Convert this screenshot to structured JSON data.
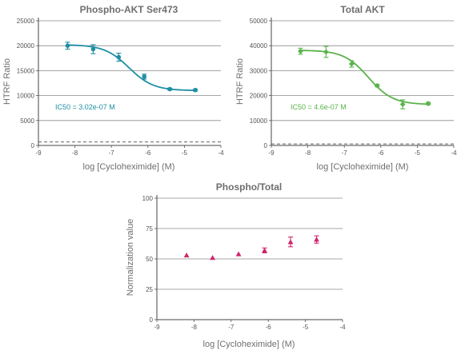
{
  "chart_data": [
    {
      "type": "scatter",
      "title": "Phospho-AKT Ser473",
      "xlabel": "log [Cycloheximide] (M)",
      "ylabel": "HTRF Ratio",
      "xlim": [
        -9,
        -4
      ],
      "ylim": [
        0,
        25000
      ],
      "x_ticks": [
        "-9",
        "-8",
        "-7",
        "-6",
        "-5",
        "-4"
      ],
      "y_ticks": [
        "0",
        "5000",
        "10000",
        "15000",
        "20000",
        "25000"
      ],
      "grid": true,
      "color": "#1f8fa4",
      "marker": "circle",
      "baseline": 700,
      "annotation": "IC50 = 3.02e-07 M",
      "series": [
        {
          "x": [
            -8.2,
            -7.5,
            -6.8,
            -6.1,
            -5.4,
            -4.7
          ],
          "y": [
            20000,
            19300,
            17700,
            13800,
            11300,
            11100
          ],
          "err": [
            700,
            900,
            800,
            500,
            200,
            200
          ]
        }
      ],
      "fit": {
        "top": 20200,
        "bottom": 11000,
        "log_ic50": -6.52,
        "hill": 1.3
      }
    },
    {
      "type": "scatter",
      "title": "Total AKT",
      "xlabel": "log [Cycloheximide] (M)",
      "ylabel": "HTRF Ratio",
      "xlim": [
        -9,
        -4
      ],
      "ylim": [
        0,
        50000
      ],
      "x_ticks": [
        "-9",
        "-8",
        "-7",
        "-6",
        "-5",
        "-4"
      ],
      "y_ticks": [
        "0",
        "10000",
        "20000",
        "30000",
        "40000",
        "50000"
      ],
      "grid": true,
      "color": "#5ab34a",
      "marker": "diamond",
      "baseline": 600,
      "annotation": "IC50 = 4.6e-07 M",
      "series": [
        {
          "x": [
            -8.2,
            -7.5,
            -6.8,
            -6.1,
            -5.4,
            -4.7
          ],
          "y": [
            37800,
            37500,
            32700,
            24000,
            16500,
            16800
          ],
          "err": [
            1200,
            2200,
            1300,
            500,
            1800,
            500
          ]
        }
      ],
      "fit": {
        "top": 38200,
        "bottom": 16400,
        "log_ic50": -6.34,
        "hill": 1.3
      }
    },
    {
      "type": "scatter",
      "title": "Phospho/Total",
      "xlabel": "log [Cycloheximide] (M)",
      "ylabel": "Normalization value",
      "xlim": [
        -9,
        -4
      ],
      "ylim": [
        0,
        100
      ],
      "x_ticks": [
        "-9",
        "-8",
        "-7",
        "-6",
        "-5",
        "-4"
      ],
      "y_ticks": [
        "0",
        "25",
        "50",
        "75",
        "100"
      ],
      "grid": true,
      "color": "#d0256c",
      "marker": "triangle",
      "annotation": "",
      "series": [
        {
          "x": [
            -8.2,
            -7.5,
            -6.8,
            -6.1,
            -5.4,
            -4.7
          ],
          "y": [
            53,
            51,
            54,
            57,
            64,
            66
          ],
          "err": [
            0,
            0,
            0,
            2,
            4,
            3
          ]
        }
      ]
    }
  ]
}
